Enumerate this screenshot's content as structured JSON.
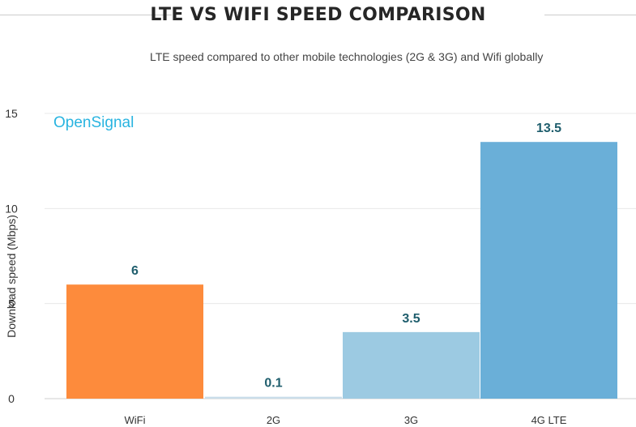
{
  "title": "LTE VS WIFI SPEED COMPARISON",
  "subtitle": "LTE speed compared to other mobile technologies (2G & 3G) and Wifi globally",
  "brand": "OpenSignal",
  "colors": {
    "wifi": "#fd8b3c",
    "2g": "#c9dde9",
    "3g": "#9ccae2",
    "4g_lte": "#6aafd8",
    "value_label": "#1f5e6d",
    "gridline": "#e8e8e8",
    "axis_text": "#333333"
  },
  "chart_data": {
    "type": "bar",
    "title": "LTE VS WIFI SPEED COMPARISON",
    "subtitle": "LTE speed compared to other mobile technologies (2G & 3G) and Wifi globally",
    "categories": [
      "WiFi",
      "2G",
      "3G",
      "4G LTE"
    ],
    "values": [
      6,
      0.1,
      3.5,
      13.5
    ],
    "value_labels": [
      "6",
      "0.1",
      "3.5",
      "13.5"
    ],
    "xlabel": "",
    "ylabel": "Download speed (Mbps)",
    "ylim": [
      0,
      15
    ],
    "yticks": [
      0,
      5,
      10,
      15
    ],
    "ytick_labels": [
      "0",
      "5",
      "10",
      "15"
    ],
    "grid": true,
    "legend": "none"
  }
}
